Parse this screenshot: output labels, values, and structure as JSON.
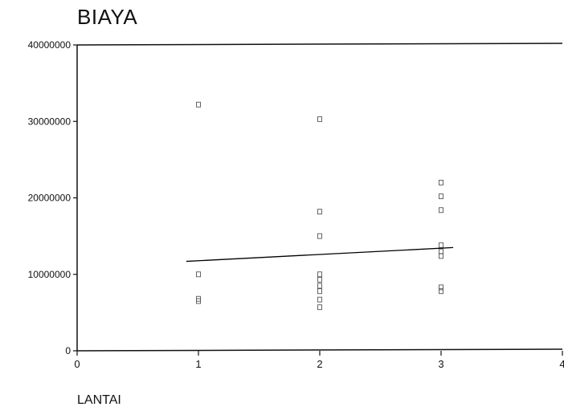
{
  "chart_data": {
    "type": "scatter",
    "title": "BIAYA",
    "xlabel": "LANTAI",
    "ylabel": "",
    "xlim": [
      0,
      4
    ],
    "ylim": [
      0,
      40000000
    ],
    "x_ticks": [
      0,
      1,
      2,
      3,
      4
    ],
    "x_tick_labels": [
      "0",
      "1",
      "2",
      "3",
      "4"
    ],
    "y_ticks": [
      0,
      10000000,
      20000000,
      30000000,
      40000000
    ],
    "y_tick_labels": [
      "0",
      "10000000",
      "20000000",
      "30000000",
      "40000000"
    ],
    "grid": false,
    "series": [
      {
        "marker": "open-square",
        "color": "#555555",
        "points": [
          [
            1,
            32200000
          ],
          [
            1,
            10000000
          ],
          [
            1,
            6800000
          ],
          [
            1,
            6500000
          ],
          [
            2,
            30300000
          ],
          [
            2,
            18200000
          ],
          [
            2,
            15000000
          ],
          [
            2,
            10000000
          ],
          [
            2,
            9300000
          ],
          [
            2,
            8500000
          ],
          [
            2,
            7800000
          ],
          [
            2,
            6700000
          ],
          [
            2,
            5700000
          ],
          [
            3,
            22000000
          ],
          [
            3,
            20200000
          ],
          [
            3,
            18400000
          ],
          [
            3,
            13800000
          ],
          [
            3,
            13000000
          ],
          [
            3,
            12400000
          ],
          [
            3,
            8300000
          ],
          [
            3,
            7800000
          ]
        ]
      }
    ],
    "fit_line": {
      "color": "#000000",
      "points": [
        [
          0.9,
          11700000
        ],
        [
          3.1,
          13500000
        ]
      ]
    }
  }
}
